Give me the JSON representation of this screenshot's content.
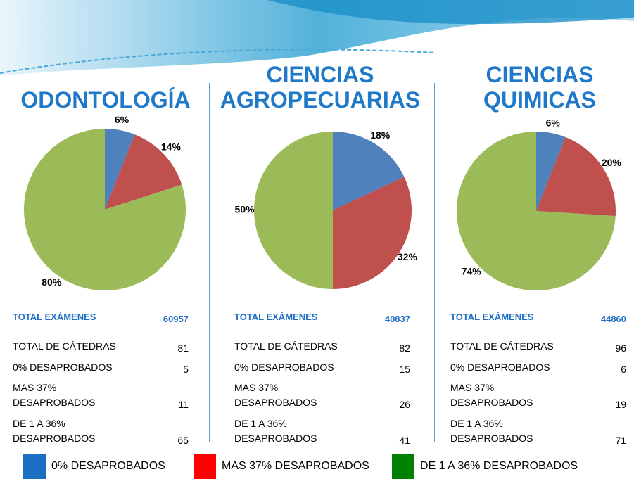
{
  "chart_data": [
    {
      "type": "pie",
      "title": "ODONTOLOGÍA",
      "values": [
        6,
        14,
        80
      ],
      "value_labels": [
        "6%",
        "14%",
        "80%"
      ],
      "colors": [
        "#4f81bd",
        "#c0504d",
        "#9bbb59"
      ]
    },
    {
      "type": "pie",
      "title": "CIENCIAS AGROPECUARIAS",
      "values": [
        18,
        32,
        50
      ],
      "value_labels": [
        "18%",
        "32%",
        "50%"
      ],
      "colors": [
        "#4f81bd",
        "#c0504d",
        "#9bbb59"
      ]
    },
    {
      "type": "pie",
      "title": "CIENCIAS QUIMICAS",
      "values": [
        6,
        20,
        74
      ],
      "value_labels": [
        "6%",
        "20%",
        "74%"
      ],
      "colors": [
        "#4f81bd",
        "#c0504d",
        "#9bbb59"
      ]
    }
  ],
  "tables": [
    {
      "rows": [
        [
          "TOTAL EXÁMENES",
          60957
        ],
        [
          "TOTAL DE CÁTEDRAS",
          81
        ],
        [
          "0% DESAPROBADOS",
          5
        ],
        [
          "MAS 37% DESAPROBADOS",
          11
        ],
        [
          "DE 1 A 36% DESAPROBADOS",
          65
        ]
      ]
    },
    {
      "rows": [
        [
          "TOTAL EXÁMENES",
          40837
        ],
        [
          "TOTAL DE CÁTEDRAS",
          82
        ],
        [
          "0% DESAPROBADOS",
          15
        ],
        [
          "MAS 37% DESAPROBADOS",
          26
        ],
        [
          "DE 1 A 36% DESAPROBADOS",
          41
        ]
      ]
    },
    {
      "rows": [
        [
          "TOTAL EXÁMENES",
          44860
        ],
        [
          "TOTAL DE CÁTEDRAS",
          96
        ],
        [
          "0% DESAPROBADOS",
          6
        ],
        [
          "MAS 37% DESAPROBADOS",
          19
        ],
        [
          "DE 1 A 36% DESAPROBADOS",
          71
        ]
      ]
    }
  ],
  "legend": {
    "items": [
      {
        "label": "0% DESAPROBADOS",
        "color": "#1a6fc4"
      },
      {
        "label": "MAS 37% DESAPROBADOS",
        "color": "#ff0000"
      },
      {
        "label": "DE 1 A 36% DESAPROBADOS",
        "color": "#008000"
      }
    ]
  }
}
